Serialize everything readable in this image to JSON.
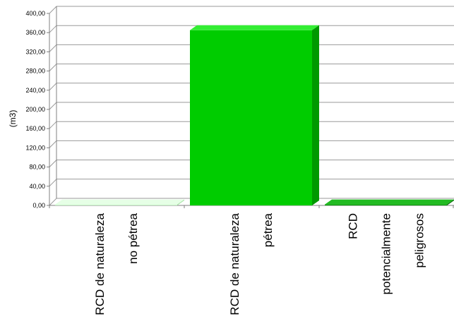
{
  "colors": {
    "bar_light_front": "#cdfdcd",
    "bar_light_top": "#e6ffe6",
    "bar_light_side": "#a8e5a8",
    "bar_bright_front": "#00cc00",
    "bar_bright_top": "#33ee33",
    "bar_bright_side": "#009900",
    "bar_dark_front": "#009900",
    "bar_dark_top": "#22bb22",
    "bar_dark_side": "#006600",
    "grid": "#9a9a9a",
    "axis": "#808080"
  },
  "chart_data": {
    "type": "bar",
    "title": "",
    "xlabel": "",
    "ylabel": "(m3)",
    "ylim": [
      0,
      400
    ],
    "yticks": [
      "0,00",
      "40,00",
      "80,00",
      "120,00",
      "160,00",
      "200,00",
      "240,00",
      "280,00",
      "320,00",
      "360,00",
      "400,00"
    ],
    "grid": true,
    "style": "3d",
    "categories": [
      [
        "RCD de naturaleza",
        "no pétrea"
      ],
      [
        "RCD de naturaleza",
        "pétrea"
      ],
      [
        "RCD",
        "potencialmente",
        "peligrosos"
      ]
    ],
    "values": [
      2,
      365,
      2
    ]
  }
}
